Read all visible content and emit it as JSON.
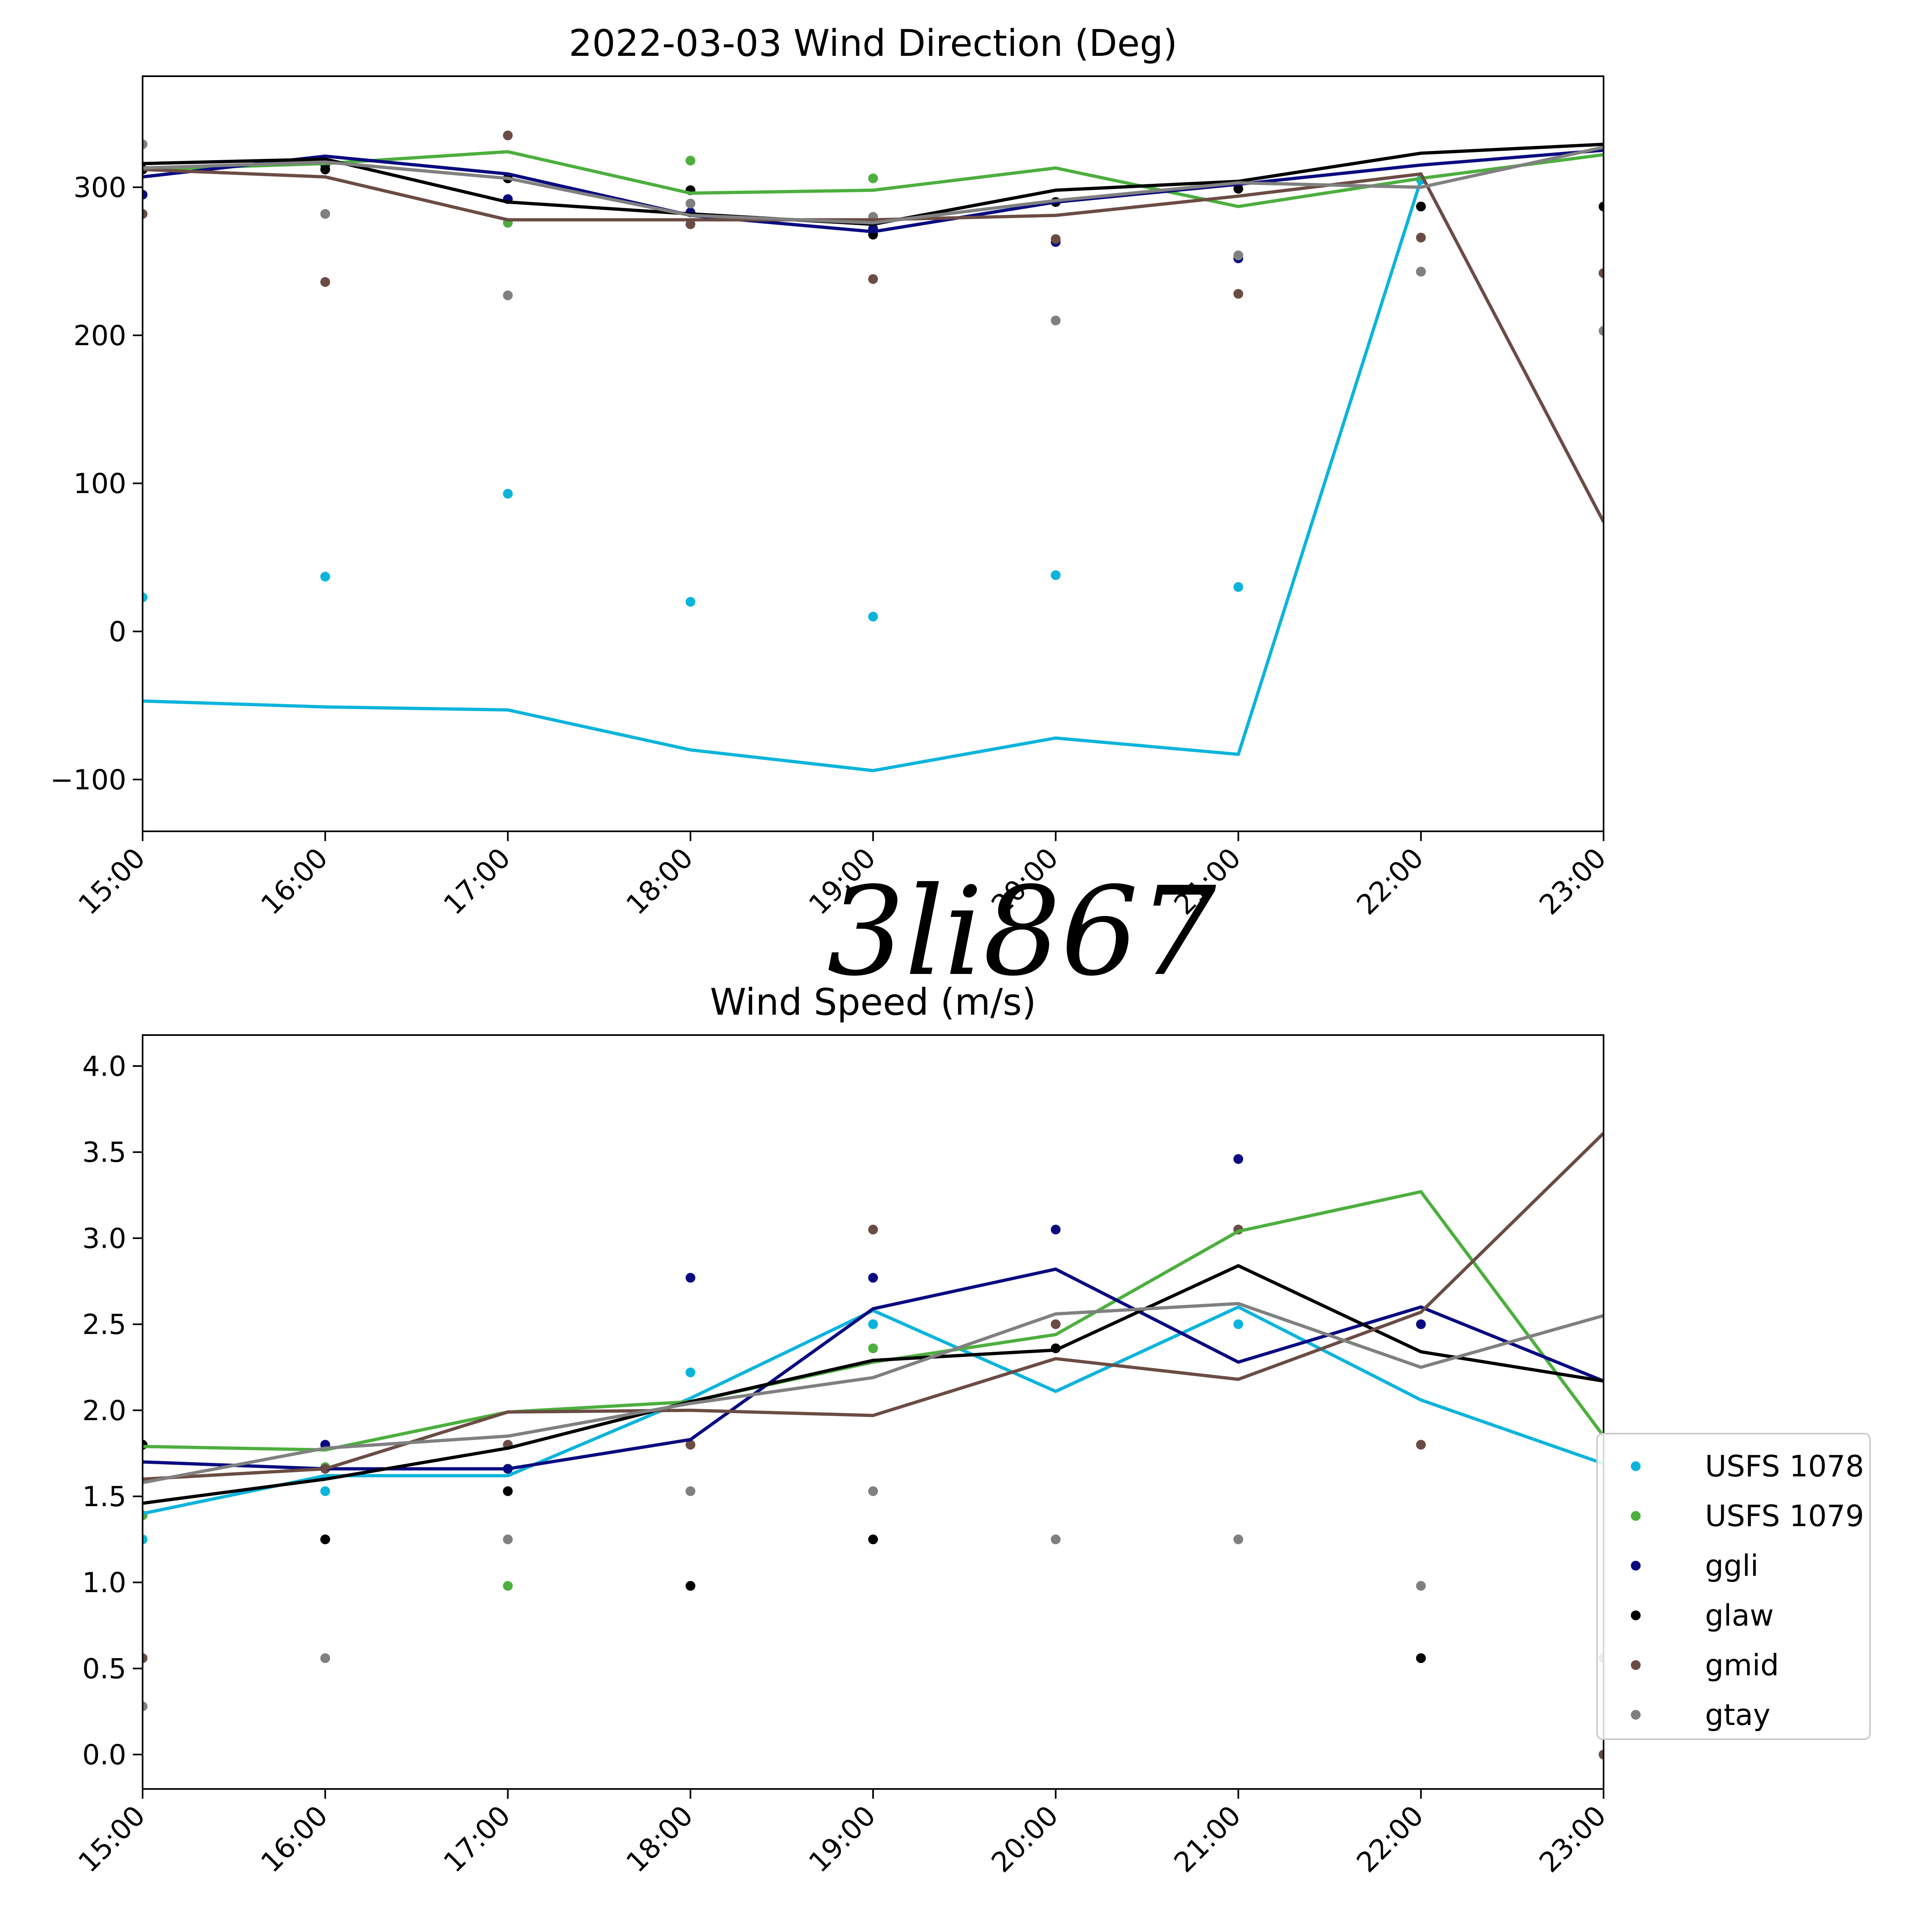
{
  "signature": "3li867",
  "legend": {
    "entries": [
      {
        "name": "USFS 1078",
        "color": "#0cb4dc"
      },
      {
        "name": "USFS 1079",
        "color": "#4caf3e"
      },
      {
        "name": "ggli",
        "color": "#0a0a80"
      },
      {
        "name": "glaw",
        "color": "#000000"
      },
      {
        "name": "gmid",
        "color": "#6b4c44"
      },
      {
        "name": "gtay",
        "color": "#808080"
      }
    ]
  },
  "chart_data": [
    {
      "type": "line",
      "title": "2022-03-03 Wind Direction (Deg)",
      "categories": [
        "15:00",
        "16:00",
        "17:00",
        "18:00",
        "19:00",
        "20:00",
        "21:00",
        "22:00",
        "23:00"
      ],
      "ylim": [
        -135,
        375
      ],
      "yticks": [
        -100,
        0,
        100,
        200,
        300
      ],
      "ytick_labels": [
        "−100",
        "0",
        "100",
        "200",
        "300"
      ],
      "series": [
        {
          "name": "USFS 1078",
          "color": "#0cb4dc",
          "line": [
            -47,
            -51,
            -53,
            -80,
            -94,
            -72,
            -83,
            305,
            null
          ],
          "points": [
            23,
            37,
            93,
            20,
            10,
            38,
            30,
            305,
            null
          ]
        },
        {
          "name": "USFS 1079",
          "color": "#4caf3e",
          "line": [
            312,
            316,
            324,
            296,
            298,
            313,
            287,
            306,
            322
          ],
          "points": [
            null,
            null,
            276,
            318,
            306,
            290,
            null,
            null,
            null
          ]
        },
        {
          "name": "ggli",
          "color": "#0a0a80",
          "line": [
            307,
            321,
            309,
            281,
            270,
            290,
            302,
            315,
            325
          ],
          "points": [
            295,
            315,
            292,
            283,
            272,
            263,
            252,
            243,
            242
          ]
        },
        {
          "name": "glaw",
          "color": "#000000",
          "line": [
            316,
            319,
            290,
            282,
            275,
            298,
            304,
            323,
            329
          ],
          "points": [
            312,
            312,
            306,
            298,
            268,
            290,
            299,
            287,
            287
          ]
        },
        {
          "name": "gmid",
          "color": "#6b4c44",
          "line": [
            312,
            307,
            278,
            278,
            278,
            281,
            294,
            309,
            74
          ],
          "points": [
            282,
            236,
            335,
            275,
            238,
            265,
            228,
            266,
            242
          ]
        },
        {
          "name": "gtay",
          "color": "#808080",
          "line": [
            313,
            317,
            306,
            281,
            276,
            291,
            303,
            300,
            327
          ],
          "points": [
            329,
            282,
            227,
            289,
            280,
            210,
            254,
            243,
            203
          ]
        }
      ]
    },
    {
      "type": "line",
      "title": "Wind Speed (m/s)",
      "categories": [
        "15:00",
        "16:00",
        "17:00",
        "18:00",
        "19:00",
        "20:00",
        "21:00",
        "22:00",
        "23:00"
      ],
      "ylim": [
        -0.2,
        4.18
      ],
      "yticks": [
        0,
        0.5,
        1,
        1.5,
        2,
        2.5,
        3,
        3.5,
        4
      ],
      "ytick_labels": [
        "0.0",
        "0.5",
        "1.0",
        "1.5",
        "2.0",
        "2.5",
        "3.0",
        "3.5",
        "4.0"
      ],
      "series": [
        {
          "name": "USFS 1078",
          "color": "#0cb4dc",
          "line": [
            1.4,
            1.62,
            1.62,
            2.07,
            2.58,
            2.11,
            2.6,
            2.06,
            1.69
          ],
          "points": [
            1.25,
            1.53,
            1.66,
            2.22,
            2.5,
            null,
            2.5,
            null,
            null
          ]
        },
        {
          "name": "USFS 1079",
          "color": "#4caf3e",
          "line": [
            1.79,
            1.77,
            1.99,
            2.05,
            2.28,
            2.44,
            3.04,
            3.27,
            1.85
          ],
          "points": [
            1.39,
            1.67,
            0.98,
            null,
            2.36,
            null,
            null,
            null,
            null
          ]
        },
        {
          "name": "ggli",
          "color": "#0a0a80",
          "line": [
            1.7,
            1.66,
            1.66,
            1.83,
            2.59,
            2.82,
            2.28,
            2.6,
            2.17
          ],
          "points": [
            1.8,
            1.8,
            1.66,
            2.77,
            2.77,
            3.05,
            3.46,
            2.5,
            null
          ]
        },
        {
          "name": "glaw",
          "color": "#000000",
          "line": [
            1.46,
            1.6,
            1.78,
            2.05,
            2.29,
            2.35,
            2.84,
            2.34,
            2.17
          ],
          "points": [
            1.8,
            1.25,
            1.53,
            0.98,
            1.25,
            2.36,
            3.05,
            0.56,
            null
          ]
        },
        {
          "name": "gmid",
          "color": "#6b4c44",
          "line": [
            1.6,
            1.66,
            1.99,
            2.0,
            1.97,
            2.3,
            2.18,
            2.57,
            3.61
          ],
          "points": [
            0.56,
            1.66,
            1.8,
            1.8,
            3.05,
            2.5,
            3.05,
            1.8,
            0.0
          ]
        },
        {
          "name": "gtay",
          "color": "#808080",
          "line": [
            1.58,
            1.78,
            1.85,
            2.04,
            2.19,
            2.56,
            2.62,
            2.25,
            2.55
          ],
          "points": [
            0.28,
            0.56,
            1.25,
            1.53,
            1.53,
            1.25,
            1.25,
            0.98,
            0.56
          ]
        }
      ]
    }
  ]
}
